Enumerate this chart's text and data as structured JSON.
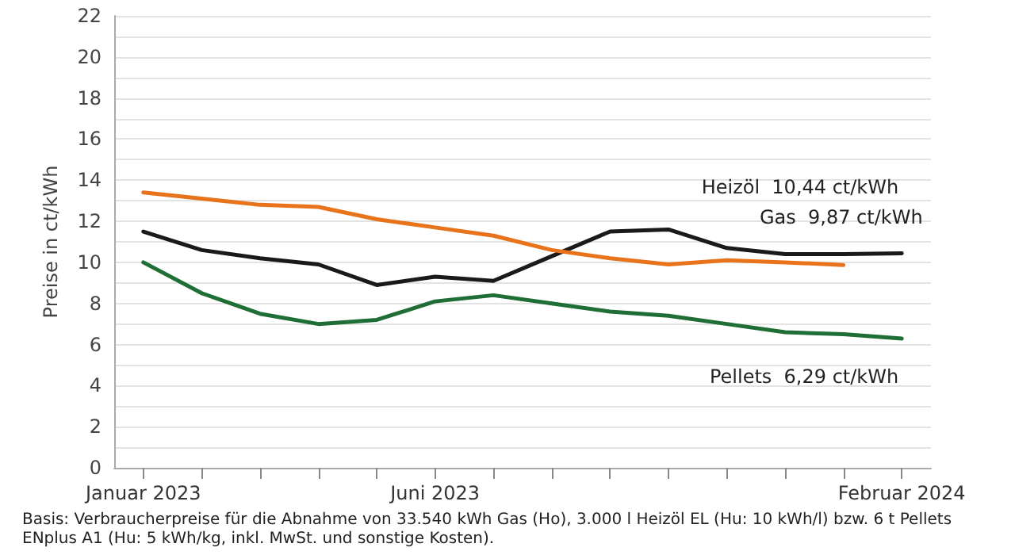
{
  "chart_data": {
    "type": "line",
    "ylabel": "Preise in ct/kWh",
    "categories": [
      "Januar 2023",
      null,
      null,
      null,
      null,
      "Juni 2023",
      null,
      null,
      null,
      null,
      null,
      null,
      null,
      "Februar 2024"
    ],
    "series": [
      {
        "name": "Heizöl",
        "color": "#1a1a1a",
        "values": [
          11.5,
          10.6,
          10.2,
          9.9,
          8.9,
          9.3,
          9.1,
          10.3,
          11.5,
          11.6,
          10.7,
          10.4,
          10.4,
          10.44
        ],
        "value_labels": [
          null,
          null,
          null,
          null,
          null,
          null,
          null,
          null,
          null,
          null,
          null,
          null,
          null,
          "10,44 ct/kWh"
        ]
      },
      {
        "name": "Gas",
        "color": "#e8731a",
        "values": [
          13.4,
          13.1,
          12.8,
          12.7,
          12.1,
          11.7,
          11.3,
          10.6,
          10.2,
          9.9,
          10.1,
          10.0,
          9.87,
          null
        ],
        "value_labels": [
          null,
          null,
          null,
          null,
          null,
          null,
          null,
          null,
          null,
          null,
          null,
          null,
          "9,87 ct/kWh",
          null
        ]
      },
      {
        "name": "Pellets",
        "color": "#1f6e35",
        "values": [
          10.0,
          8.5,
          7.5,
          7.0,
          7.2,
          8.1,
          8.4,
          8.0,
          7.6,
          7.4,
          7.0,
          6.6,
          6.5,
          6.29
        ],
        "value_labels": [
          null,
          null,
          null,
          null,
          null,
          null,
          null,
          null,
          null,
          null,
          null,
          null,
          null,
          "6,29 ct/kWh"
        ]
      }
    ],
    "ylim": [
      0,
      22
    ],
    "yticks": [
      0,
      {
        "value": 1,
        "label": null
      },
      2,
      {
        "value": 3,
        "label": null
      },
      4,
      {
        "value": 5,
        "label": null
      },
      6,
      {
        "value": 7,
        "label": null
      },
      8,
      {
        "value": 9,
        "label": null
      },
      10,
      {
        "value": 11,
        "label": null
      },
      12,
      {
        "value": 13,
        "label": null
      },
      14,
      {
        "value": 15,
        "label": null
      },
      16,
      {
        "value": 17,
        "label": null
      },
      18,
      {
        "value": 19,
        "label": null
      },
      20,
      {
        "value": 21,
        "label": null
      },
      22
    ],
    "grid": "y",
    "legend": false,
    "marker": "none",
    "line_style": "solid",
    "annotations": [
      "Basis: Verbraucherpreise für die Abnahme von 33.540 kWh Gas (Ho), 3.000 l Heizöl EL (Hu: 10 kWh/l) bzw. 6 t Pellets ENplus A1 (Hu: 5 kWh/kg, inkl. MwSt. und sonstige Kosten)."
    ]
  }
}
